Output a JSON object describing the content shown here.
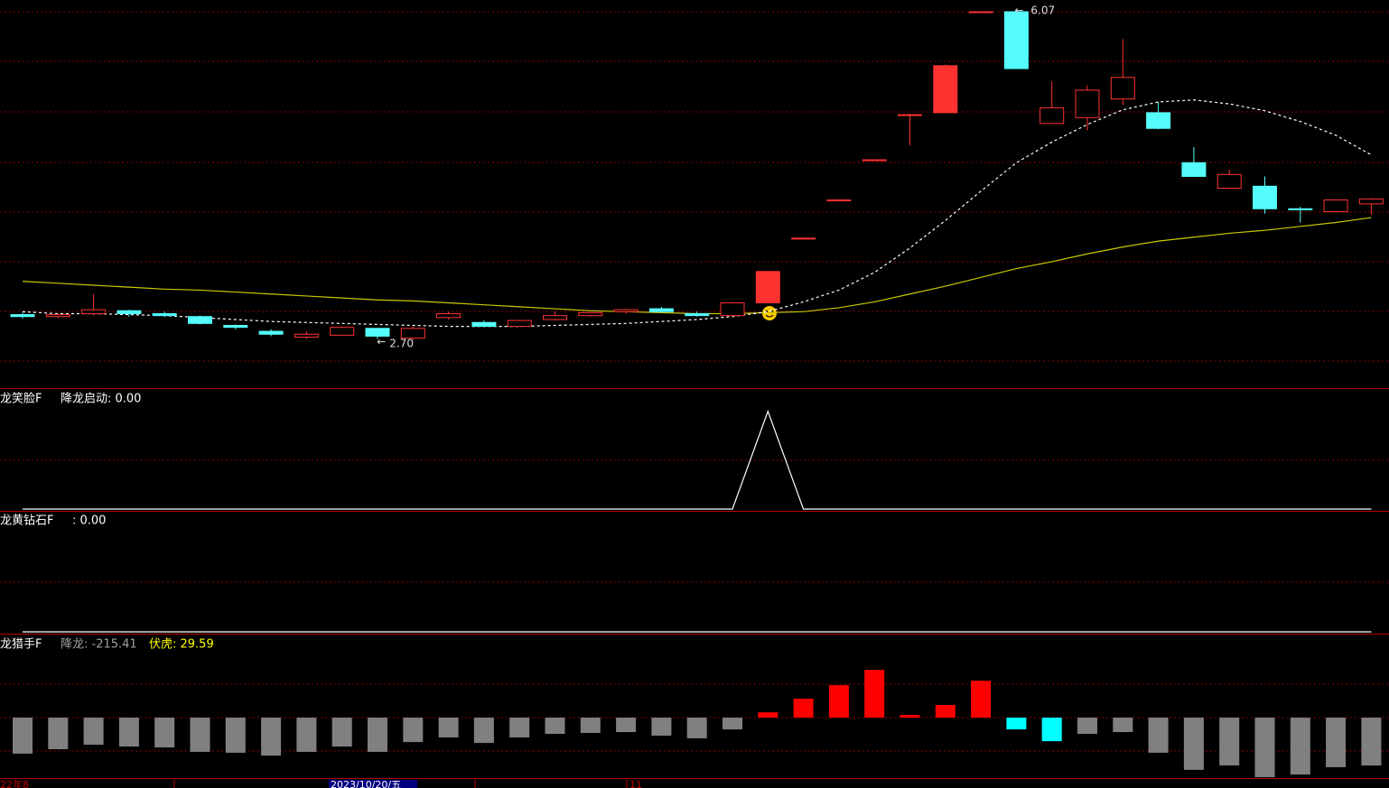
{
  "chart_data": [
    {
      "type": "candlestick",
      "open": [
        2.96,
        2.94,
        2.97,
        3.0,
        2.97,
        2.94,
        2.85,
        2.79,
        2.73,
        2.75,
        2.82,
        2.72,
        2.93,
        2.88,
        2.84,
        2.91,
        2.95,
        2.99,
        3.02,
        2.97,
        2.95,
        3.08,
        3.74,
        4.13,
        4.54,
        5.0,
        5.02,
        6.05,
        6.05,
        4.91,
        4.97,
        5.16,
        5.02,
        4.51,
        4.25,
        4.27,
        4.04,
        4.01,
        4.09
      ],
      "close": [
        2.94,
        2.96,
        3.01,
        2.97,
        2.95,
        2.87,
        2.83,
        2.76,
        2.76,
        2.83,
        2.74,
        2.82,
        2.97,
        2.84,
        2.9,
        2.95,
        2.98,
        3.01,
        2.99,
        2.95,
        3.08,
        3.4,
        3.74,
        4.13,
        4.54,
        5.0,
        5.5,
        6.05,
        5.47,
        5.07,
        5.25,
        5.38,
        4.86,
        4.37,
        4.39,
        4.04,
        4.03,
        4.13,
        4.14
      ],
      "high": [
        2.98,
        2.97,
        3.17,
        3.01,
        2.99,
        2.95,
        2.86,
        2.81,
        2.79,
        2.84,
        2.82,
        2.84,
        2.99,
        2.9,
        2.91,
        2.99,
        2.99,
        3.02,
        3.04,
        2.99,
        3.09,
        3.41,
        3.74,
        4.13,
        4.54,
        5.01,
        5.51,
        6.05,
        6.07,
        5.34,
        5.3,
        5.77,
        5.13,
        4.67,
        4.44,
        4.37,
        4.06,
        4.14,
        4.15
      ],
      "low": [
        2.92,
        2.92,
        2.95,
        2.94,
        2.94,
        2.86,
        2.81,
        2.74,
        2.71,
        2.75,
        2.71,
        2.7,
        2.91,
        2.84,
        2.84,
        2.9,
        2.94,
        2.97,
        2.99,
        2.94,
        2.94,
        3.08,
        3.74,
        4.13,
        4.54,
        4.69,
        5.02,
        6.05,
        5.47,
        4.91,
        4.84,
        5.1,
        4.85,
        4.37,
        4.24,
        3.99,
        3.9,
        4.0,
        3.98
      ],
      "up_color": "#ff3232",
      "down_color": "#54fcfc",
      "solid_up": [
        21,
        26
      ],
      "ylim": [
        2.21,
        6.17
      ],
      "lines": [
        {
          "color": "#c8c800",
          "dashed": false,
          "values": [
            3.3,
            3.28,
            3.26,
            3.24,
            3.22,
            3.21,
            3.19,
            3.17,
            3.15,
            3.13,
            3.11,
            3.1,
            3.08,
            3.06,
            3.04,
            3.02,
            3.0,
            2.99,
            2.98,
            2.97,
            2.97,
            2.98,
            2.99,
            3.03,
            3.09,
            3.17,
            3.25,
            3.34,
            3.43,
            3.5,
            3.58,
            3.65,
            3.71,
            3.75,
            3.79,
            3.82,
            3.86,
            3.9,
            3.95
          ]
        },
        {
          "color": "#ffffff",
          "dashed": true,
          "values": [
            2.99,
            2.97,
            2.97,
            2.96,
            2.95,
            2.93,
            2.91,
            2.89,
            2.88,
            2.87,
            2.86,
            2.85,
            2.84,
            2.84,
            2.84,
            2.85,
            2.86,
            2.87,
            2.89,
            2.91,
            2.94,
            2.99,
            3.09,
            3.21,
            3.39,
            3.64,
            3.92,
            4.22,
            4.51,
            4.72,
            4.9,
            5.05,
            5.13,
            5.15,
            5.11,
            5.04,
            4.93,
            4.79,
            4.59
          ]
        }
      ],
      "high_label": "6.07",
      "low_label": "2.70"
    },
    {
      "type": "line",
      "title": "龙笑脸F",
      "legend": "降龙启动: 0.00",
      "color": "#ffffff",
      "values": [
        0,
        0,
        0,
        0,
        0,
        0,
        0,
        0,
        0,
        0,
        0,
        0,
        0,
        0,
        0,
        0,
        0,
        0,
        0,
        0,
        0,
        1,
        0,
        0,
        0,
        0,
        0,
        0,
        0,
        0,
        0,
        0,
        0,
        0,
        0,
        0,
        0,
        0,
        0
      ],
      "ylim": [
        0,
        1.2
      ]
    },
    {
      "type": "line",
      "title": "龙黄钻石F",
      "legend": ": 0.00",
      "color": "#ffffff",
      "values": [
        0,
        0,
        0,
        0,
        0,
        0,
        0,
        0,
        0,
        0,
        0,
        0,
        0,
        0,
        0,
        0,
        0,
        0,
        0,
        0,
        0,
        0,
        0,
        0,
        0,
        0,
        0,
        0,
        0,
        0,
        0,
        0,
        0,
        0,
        0,
        0,
        0,
        0,
        0
      ],
      "ylim": [
        0,
        1
      ]
    },
    {
      "type": "bar",
      "title": "龙猎手F",
      "legend": [
        "降龙: -215.41",
        "伏虎: 29.59"
      ],
      "values": [
        -162,
        -142,
        -122,
        -130,
        -134,
        -154,
        -158,
        -171,
        -154,
        -130,
        -154,
        -110,
        -89,
        -114,
        -89,
        -73,
        -69,
        -65,
        -81,
        -93,
        -53,
        24,
        85,
        146,
        215,
        12,
        57,
        166,
        -53,
        -106,
        -73,
        -65,
        -158,
        -235,
        -215,
        -268,
        -256,
        -223,
        -215.41
      ],
      "colors": [
        "#808080",
        "#808080",
        "#808080",
        "#808080",
        "#808080",
        "#808080",
        "#808080",
        "#808080",
        "#808080",
        "#808080",
        "#808080",
        "#808080",
        "#808080",
        "#808080",
        "#808080",
        "#808080",
        "#808080",
        "#808080",
        "#808080",
        "#808080",
        "#808080",
        "#ff0000",
        "#ff0000",
        "#ff0000",
        "#ff0000",
        "#ff0000",
        "#ff0000",
        "#ff0000",
        "#00ffff",
        "#00ffff",
        "#808080",
        "#808080",
        "#808080",
        "#808080",
        "#808080",
        "#808080",
        "#808080",
        "#808080",
        "#808080"
      ],
      "ylim": [
        -272,
        374
      ]
    }
  ],
  "date_labels": [
    "22年8",
    "2023/10/20/五",
    "11"
  ]
}
